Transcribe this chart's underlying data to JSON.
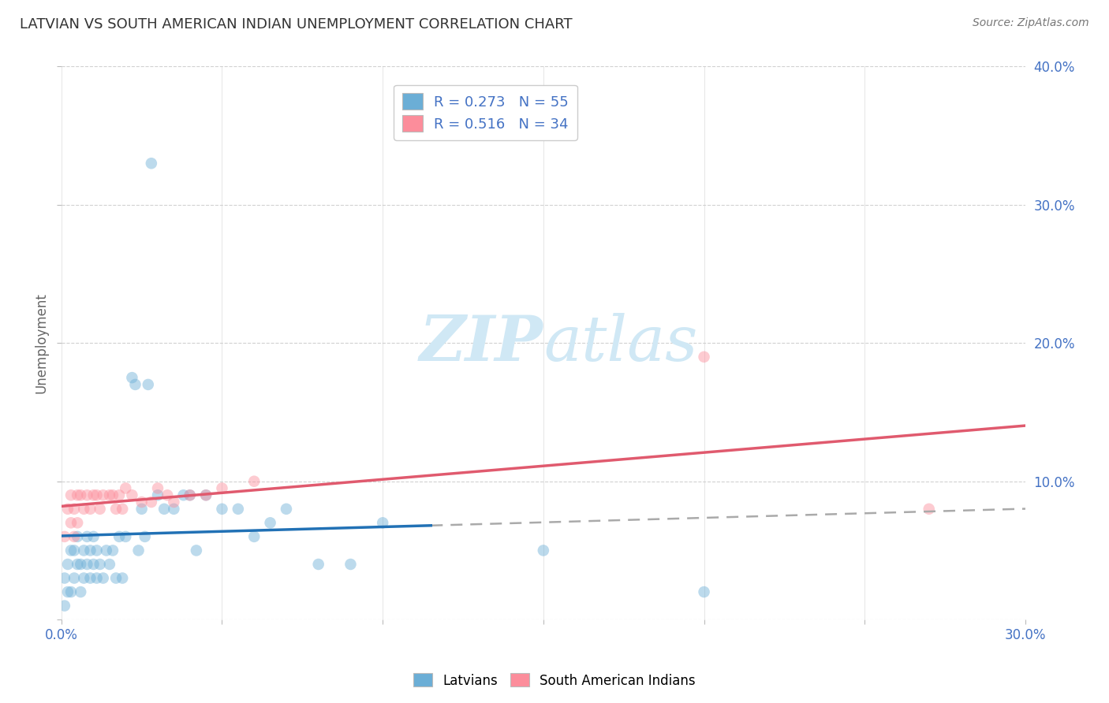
{
  "title": "LATVIAN VS SOUTH AMERICAN INDIAN UNEMPLOYMENT CORRELATION CHART",
  "source": "Source: ZipAtlas.com",
  "ylabel": "Unemployment",
  "xlim": [
    0.0,
    0.3
  ],
  "ylim": [
    0.0,
    0.4
  ],
  "xticks": [
    0.0,
    0.05,
    0.1,
    0.15,
    0.2,
    0.25,
    0.3
  ],
  "yticks": [
    0.0,
    0.1,
    0.2,
    0.3,
    0.4
  ],
  "ytick_labels": [
    "",
    "10.0%",
    "20.0%",
    "30.0%",
    "40.0%"
  ],
  "xtick_labels": [
    "0.0%",
    "",
    "",
    "",
    "",
    "",
    "30.0%"
  ],
  "latvian_R": 0.273,
  "latvian_N": 55,
  "sai_R": 0.516,
  "sai_N": 34,
  "latvian_color": "#6baed6",
  "sai_color": "#fc8d9b",
  "trend_latvian_color": "#2171b5",
  "trend_sai_color": "#e05a6e",
  "trend_dashed_color": "#aaaaaa",
  "background_color": "#ffffff",
  "grid_color": "#cccccc",
  "tick_label_color": "#4472c4",
  "latvians_scatter_x": [
    0.001,
    0.001,
    0.002,
    0.002,
    0.003,
    0.003,
    0.004,
    0.004,
    0.005,
    0.005,
    0.006,
    0.006,
    0.007,
    0.007,
    0.008,
    0.008,
    0.009,
    0.009,
    0.01,
    0.01,
    0.011,
    0.011,
    0.012,
    0.013,
    0.014,
    0.015,
    0.016,
    0.017,
    0.018,
    0.019,
    0.02,
    0.022,
    0.023,
    0.024,
    0.025,
    0.026,
    0.027,
    0.028,
    0.03,
    0.032,
    0.035,
    0.038,
    0.04,
    0.042,
    0.045,
    0.05,
    0.055,
    0.06,
    0.065,
    0.07,
    0.08,
    0.09,
    0.1,
    0.15,
    0.2
  ],
  "latvians_scatter_y": [
    0.03,
    0.01,
    0.04,
    0.02,
    0.05,
    0.02,
    0.05,
    0.03,
    0.06,
    0.04,
    0.04,
    0.02,
    0.05,
    0.03,
    0.06,
    0.04,
    0.05,
    0.03,
    0.06,
    0.04,
    0.05,
    0.03,
    0.04,
    0.03,
    0.05,
    0.04,
    0.05,
    0.03,
    0.06,
    0.03,
    0.06,
    0.175,
    0.17,
    0.05,
    0.08,
    0.06,
    0.17,
    0.33,
    0.09,
    0.08,
    0.08,
    0.09,
    0.09,
    0.05,
    0.09,
    0.08,
    0.08,
    0.06,
    0.07,
    0.08,
    0.04,
    0.04,
    0.07,
    0.05,
    0.02
  ],
  "sai_scatter_x": [
    0.001,
    0.002,
    0.003,
    0.003,
    0.004,
    0.004,
    0.005,
    0.005,
    0.006,
    0.007,
    0.008,
    0.009,
    0.01,
    0.011,
    0.012,
    0.013,
    0.015,
    0.016,
    0.017,
    0.018,
    0.019,
    0.02,
    0.022,
    0.025,
    0.028,
    0.03,
    0.033,
    0.035,
    0.04,
    0.045,
    0.05,
    0.06,
    0.2,
    0.27
  ],
  "sai_scatter_y": [
    0.06,
    0.08,
    0.09,
    0.07,
    0.08,
    0.06,
    0.09,
    0.07,
    0.09,
    0.08,
    0.09,
    0.08,
    0.09,
    0.09,
    0.08,
    0.09,
    0.09,
    0.09,
    0.08,
    0.09,
    0.08,
    0.095,
    0.09,
    0.085,
    0.085,
    0.095,
    0.09,
    0.085,
    0.09,
    0.09,
    0.095,
    0.1,
    0.19,
    0.08
  ],
  "watermark_zip": "ZIP",
  "watermark_atlas": "atlas",
  "watermark_color": "#d0e8f5",
  "marker_size": 110,
  "marker_alpha": 0.45,
  "legend_text_latvian": "R = 0.273   N = 55",
  "legend_text_sai": "R = 0.516   N = 34",
  "bottom_legend_latvians": "Latvians",
  "bottom_legend_sai": "South American Indians"
}
